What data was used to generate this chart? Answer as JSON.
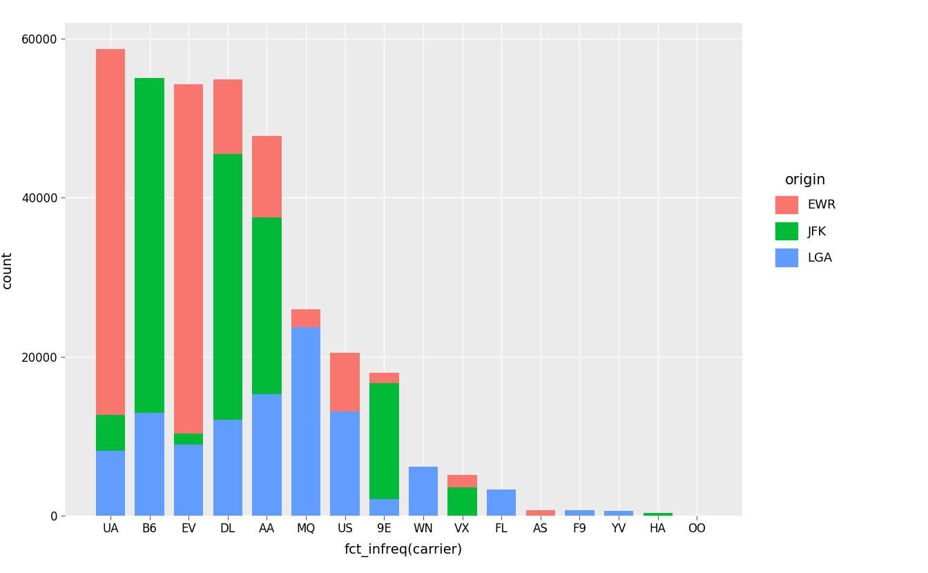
{
  "carriers": [
    "UA",
    "B6",
    "EV",
    "DL",
    "AA",
    "MQ",
    "US",
    "9E",
    "WN",
    "VX",
    "FL",
    "AS",
    "F9",
    "YV",
    "HA",
    "OO"
  ],
  "LGA": [
    8138,
    12972,
    8963,
    12062,
    15283,
    23670,
    13136,
    2042,
    6188,
    0,
    3260,
    0,
    685,
    601,
    0,
    0
  ],
  "JFK": [
    4534,
    42076,
    1408,
    33432,
    22283,
    0,
    0,
    14651,
    0,
    3596,
    0,
    0,
    0,
    0,
    342,
    32
  ],
  "EWR": [
    46087,
    0,
    43939,
    9384,
    10171,
    2276,
    7405,
    1268,
    0,
    1566,
    1,
    714,
    0,
    0,
    0,
    0
  ],
  "colors": {
    "EWR": "#F8766D",
    "JFK": "#00BA38",
    "LGA": "#619CFF"
  },
  "xlabel": "fct_infreq(carrier)",
  "ylabel": "count",
  "background_color": "#EBEBEB",
  "grid_color": "#FFFFFF",
  "legend_title": "origin",
  "ylim": [
    0,
    62000
  ],
  "yticks": [
    0,
    20000,
    40000,
    60000
  ]
}
